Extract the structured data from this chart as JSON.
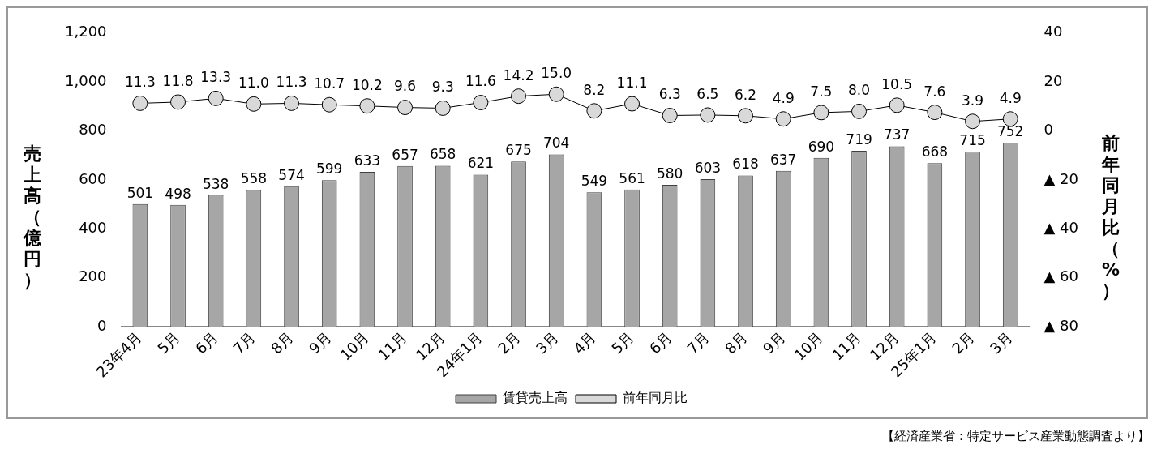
{
  "chart_data": {
    "type": "bar",
    "categories": [
      "23年4月",
      "5月",
      "6月",
      "7月",
      "8月",
      "9月",
      "10月",
      "11月",
      "12月",
      "24年1月",
      "2月",
      "3月",
      "4月",
      "5月",
      "6月",
      "7月",
      "8月",
      "9月",
      "10月",
      "11月",
      "12月",
      "25年1月",
      "2月",
      "3月"
    ],
    "series": [
      {
        "name": "賃貸売上高",
        "color": "#a6a6a6",
        "values": [
          501,
          498,
          538,
          558,
          574,
          599,
          633,
          657,
          658,
          621,
          675,
          704,
          549,
          561,
          580,
          603,
          618,
          637,
          690,
          719,
          737,
          668,
          715,
          752
        ],
        "value_labels": [
          "501",
          "498",
          "538",
          "558",
          "574",
          "599",
          "633",
          "657",
          "658",
          "621",
          "675",
          "704",
          "549",
          "561",
          "580",
          "603",
          "618",
          "637",
          "690",
          "719",
          "737",
          "668",
          "715",
          "752"
        ]
      },
      {
        "name": "前年同月比",
        "type": "line",
        "axis": "y2",
        "color": "#d9d9d9",
        "values": [
          11.3,
          11.8,
          13.3,
          11.0,
          11.3,
          10.7,
          10.2,
          9.6,
          9.3,
          11.6,
          14.2,
          15.0,
          8.2,
          11.1,
          6.3,
          6.5,
          6.2,
          4.9,
          7.5,
          8.0,
          10.5,
          7.6,
          3.9,
          4.9
        ],
        "value_labels": [
          "11.3",
          "11.8",
          "13.3",
          "11.0",
          "11.3",
          "10.7",
          "10.2",
          "9.6",
          "9.3",
          "11.6",
          "14.2",
          "15.0",
          "8.2",
          "11.1",
          "6.3",
          "6.5",
          "6.2",
          "4.9",
          "7.5",
          "8.0",
          "10.5",
          "7.6",
          "3.9",
          "4.9"
        ]
      }
    ],
    "ylabel": "売上高（億円）",
    "y2label": "前年同月比（%）",
    "ylim": [
      0,
      1200
    ],
    "yticks": [
      0,
      200,
      400,
      600,
      800,
      {
        "value": 1000,
        "label": "1,000"
      },
      {
        "value": 1200,
        "label": "1,200"
      }
    ],
    "y2lim": [
      -80,
      40
    ],
    "y2ticks": [
      {
        "value": -80,
        "label": "▲ 80"
      },
      {
        "value": -60,
        "label": "▲ 60"
      },
      {
        "value": -40,
        "label": "▲ 40"
      },
      {
        "value": -20,
        "label": "▲ 20"
      },
      0,
      20,
      40
    ],
    "grid": false,
    "legend": "bottom",
    "marker": "circle",
    "line_style": "solid",
    "annotations": [
      "【経済産業省：特定サービス産業動態調査より】"
    ]
  }
}
